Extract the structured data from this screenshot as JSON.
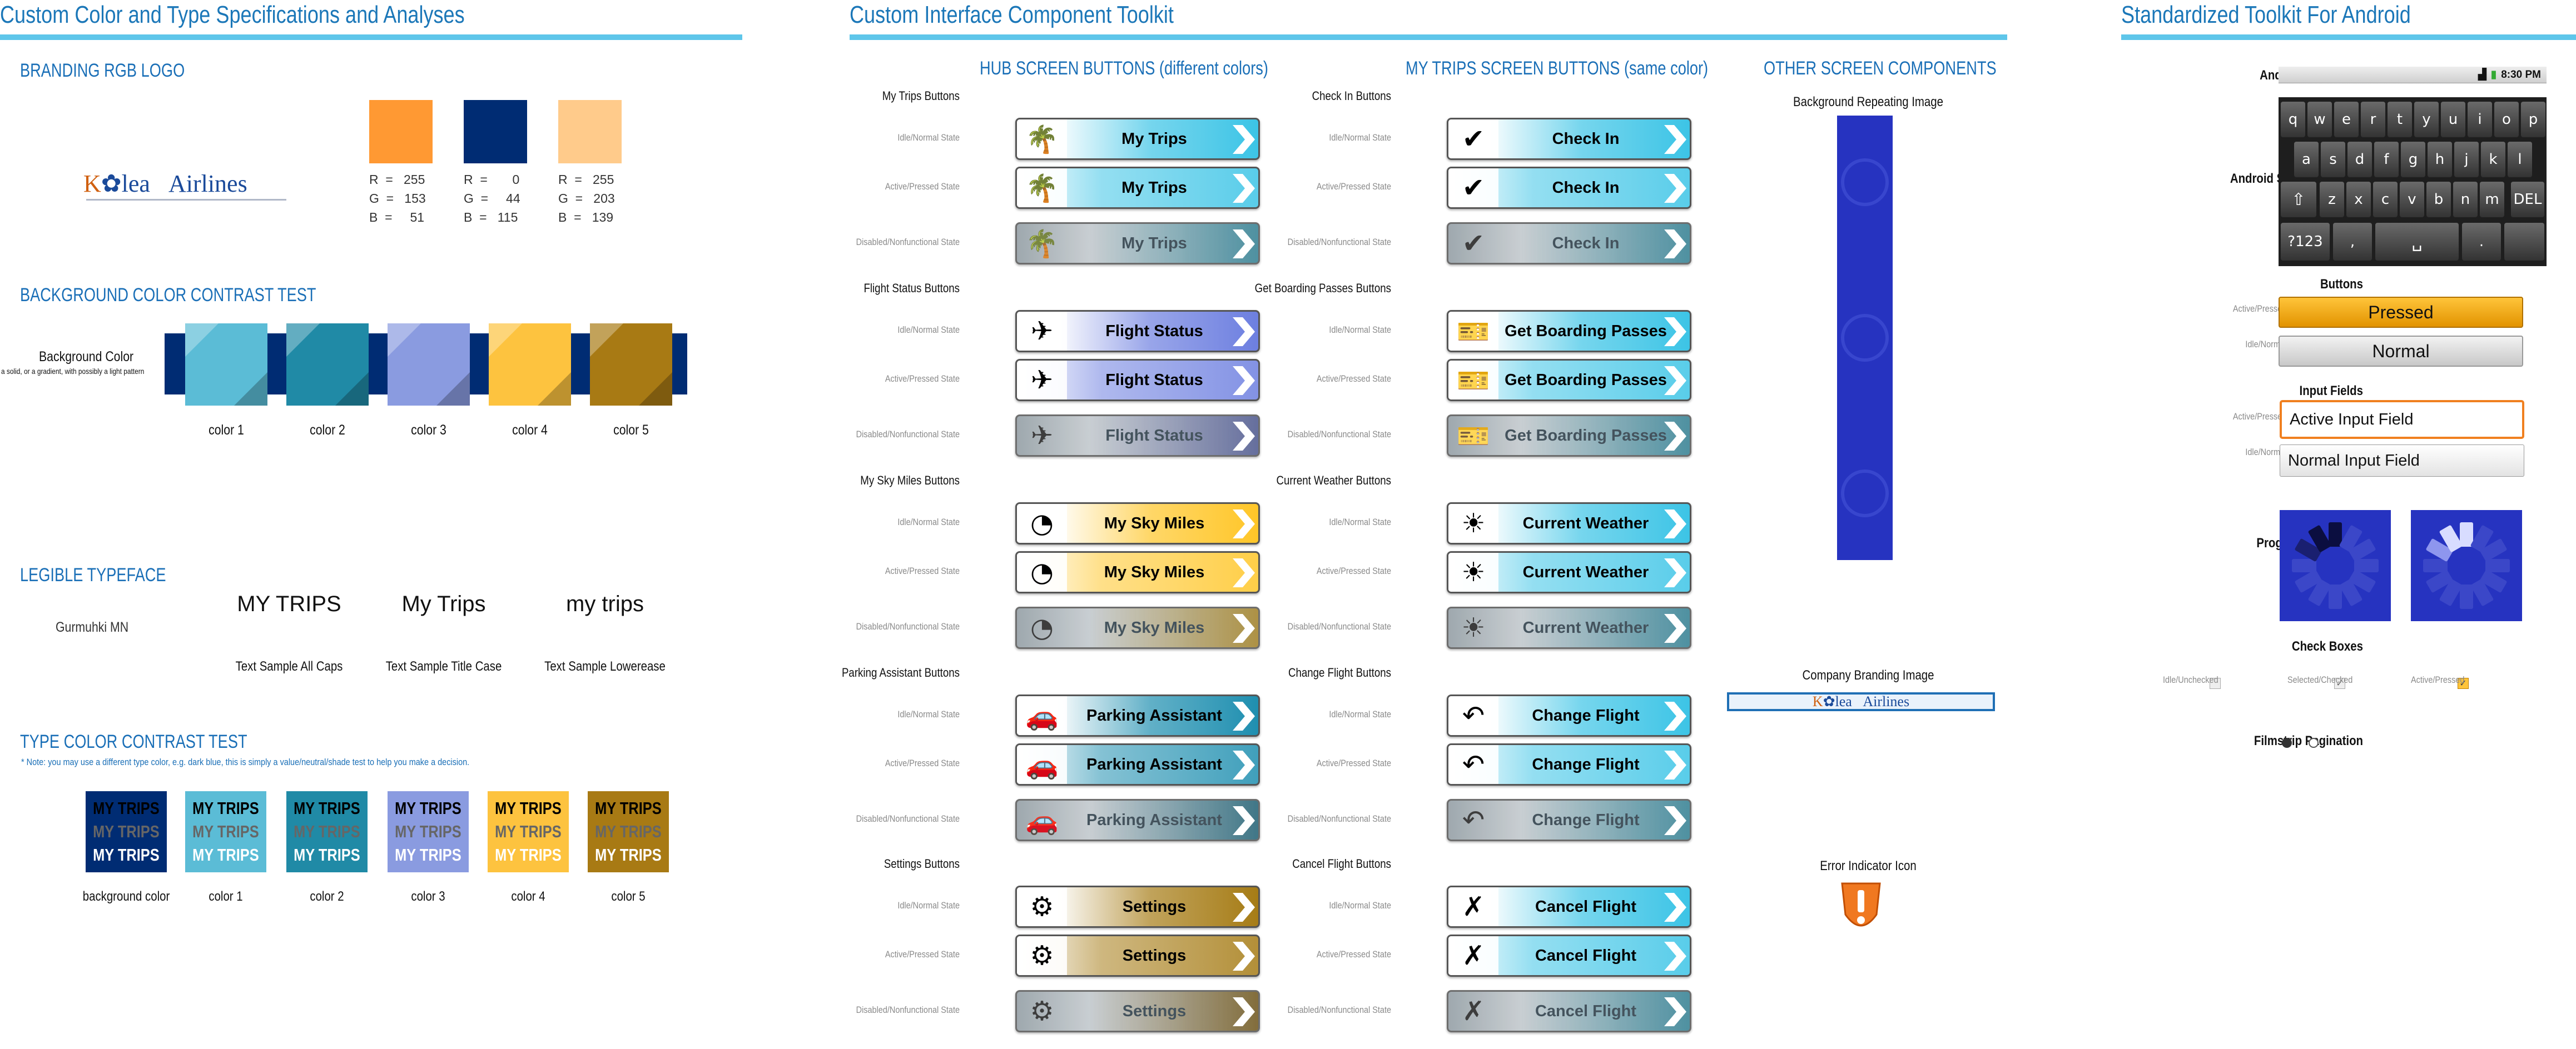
{
  "panels": {
    "left_title": "Custom Color and Type Specifications and Analyses",
    "mid_title": "Custom Interface Component Toolkit",
    "right_title": "Standardized Toolkit For Android"
  },
  "branding": {
    "heading": "BRANDING RGB LOGO",
    "logo_text_a": "K",
    "logo_text_b": "lea",
    "logo_text_c": "Airlines",
    "swatches": [
      {
        "color": "#ff9933",
        "rgb": "R  =   255\nG  =   153\nB  =     51"
      },
      {
        "color": "#002c73",
        "rgb": "R  =       0\nG  =     44\nB  =   115"
      },
      {
        "color": "#ffcb8b",
        "rgb": "R  =   255\nG  =   203\nB  =   139"
      }
    ]
  },
  "bg_contrast": {
    "heading": "BACKGROUND COLOR CONTRAST TEST",
    "label": "Background Color",
    "sublabel": "a solid, or a gradient, with possibly a light pattern",
    "colors": [
      {
        "name": "color 1",
        "color": "#5bbcd6"
      },
      {
        "name": "color 2",
        "color": "#208aa6"
      },
      {
        "name": "color 3",
        "color": "#8a9be0"
      },
      {
        "name": "color 4",
        "color": "#fdc33f"
      },
      {
        "name": "color 5",
        "color": "#a87a14"
      }
    ]
  },
  "typeface": {
    "heading": "LEGIBLE TYPEFACE",
    "font_name": "Gurmuhki MN",
    "samples": [
      {
        "text": "MY TRIPS",
        "caption": "Text Sample All Caps"
      },
      {
        "text": "My Trips",
        "caption": "Text Sample Title Case"
      },
      {
        "text": "my trips",
        "caption": "Text Sample Lowerease"
      }
    ]
  },
  "type_contrast": {
    "heading": "TYPE COLOR CONTRAST TEST",
    "note": "* Note: you may use a different type color, e.g. dark blue, this is simply a value/neutral/shade test to help you make a decision.",
    "word": "MY TRIPS",
    "boxes": [
      {
        "name": "background color",
        "color": "#002c73"
      },
      {
        "name": "color 1",
        "color": "#5bbcd6"
      },
      {
        "name": "color 2",
        "color": "#208aa6"
      },
      {
        "name": "color 3",
        "color": "#8a9be0"
      },
      {
        "name": "color 4",
        "color": "#fdc33f"
      },
      {
        "name": "color 5",
        "color": "#a87a14"
      }
    ]
  },
  "hub": {
    "heading": "HUB SCREEN BUTTONS (different colors)",
    "groups": [
      {
        "title": "My Trips Buttons",
        "label": "My Trips",
        "icon": "palm-tree-icon",
        "glyph": "🌴",
        "tint": "#3cc4e6"
      },
      {
        "title": "Flight Status Buttons",
        "label": "Flight Status",
        "icon": "airplane-icon",
        "glyph": "✈",
        "tint": "#6d7fe0"
      },
      {
        "title": "My Sky Miles Buttons",
        "label": "My Sky Miles",
        "icon": "speedometer-icon",
        "glyph": "◔",
        "tint": "#ffc628"
      },
      {
        "title": "Parking Assistant Buttons",
        "label": "Parking Assistant",
        "icon": "car-icon",
        "glyph": "🚗",
        "tint": "#1f8fb0"
      },
      {
        "title": "Settings Buttons",
        "label": "Settings",
        "icon": "gear-icon",
        "glyph": "⚙",
        "tint": "#a67c16"
      }
    ]
  },
  "trips": {
    "heading": "MY TRIPS SCREEN BUTTONS (same color)",
    "groups": [
      {
        "title": "Check In Buttons",
        "label": "Check In",
        "icon": "checkmark-icon",
        "glyph": "✔"
      },
      {
        "title": "Get Boarding Passes Buttons",
        "label": "Get Boarding Passes",
        "icon": "boarding-pass-icon",
        "glyph": "🎫"
      },
      {
        "title": "Current Weather Buttons",
        "label": "Current Weather",
        "icon": "sun-icon",
        "glyph": "☀"
      },
      {
        "title": "Change Flight Buttons",
        "label": "Change Flight",
        "icon": "return-arrow-icon",
        "glyph": "↶"
      },
      {
        "title": "Cancel Flight Buttons",
        "label": "Cancel Flight",
        "icon": "x-mark-icon",
        "glyph": "✗"
      }
    ]
  },
  "states": {
    "idle": "Idle/Normal State",
    "active": "Active/Pressed State",
    "disabled": "Disabled/Nonfunctional State"
  },
  "other": {
    "heading": "OTHER SCREEN COMPONENTS",
    "bg_image": "Background Repeating Image",
    "brand_image": "Company Branding Image",
    "error_icon": "Error Indicator Icon"
  },
  "android": {
    "status_bar_label": "Android Status Bar",
    "status_time": "8:30 PM",
    "keyboard_label": "Android Stock Keyboard",
    "keys_row1": [
      "q",
      "w",
      "e",
      "r",
      "t",
      "y",
      "u",
      "i",
      "o",
      "p"
    ],
    "keys_row2": [
      "a",
      "s",
      "d",
      "f",
      "g",
      "h",
      "j",
      "k",
      "l"
    ],
    "keys_row3": [
      "z",
      "x",
      "c",
      "v",
      "b",
      "n",
      "m"
    ],
    "key_del": "DEL",
    "key_123": "?123",
    "key_comma": ",",
    "key_period": ".",
    "buttons_label": "Buttons",
    "active_state": "Active/Pressed State",
    "idle_state": "Idle/Normal State",
    "pressed": "Pressed",
    "normal": "Normal",
    "inputs_label": "Input Fields",
    "active_input": "Active Input Field",
    "normal_input": "Normal Input Field",
    "progress_label": "Progress Indicators",
    "checkboxes_label": "Check Boxes",
    "cb_idle": "Idle/Unchecked",
    "cb_selected": "Selected/Checked",
    "cb_active": "Active/Pressed",
    "filmstrip_label": "Filmstrip Pagination"
  }
}
